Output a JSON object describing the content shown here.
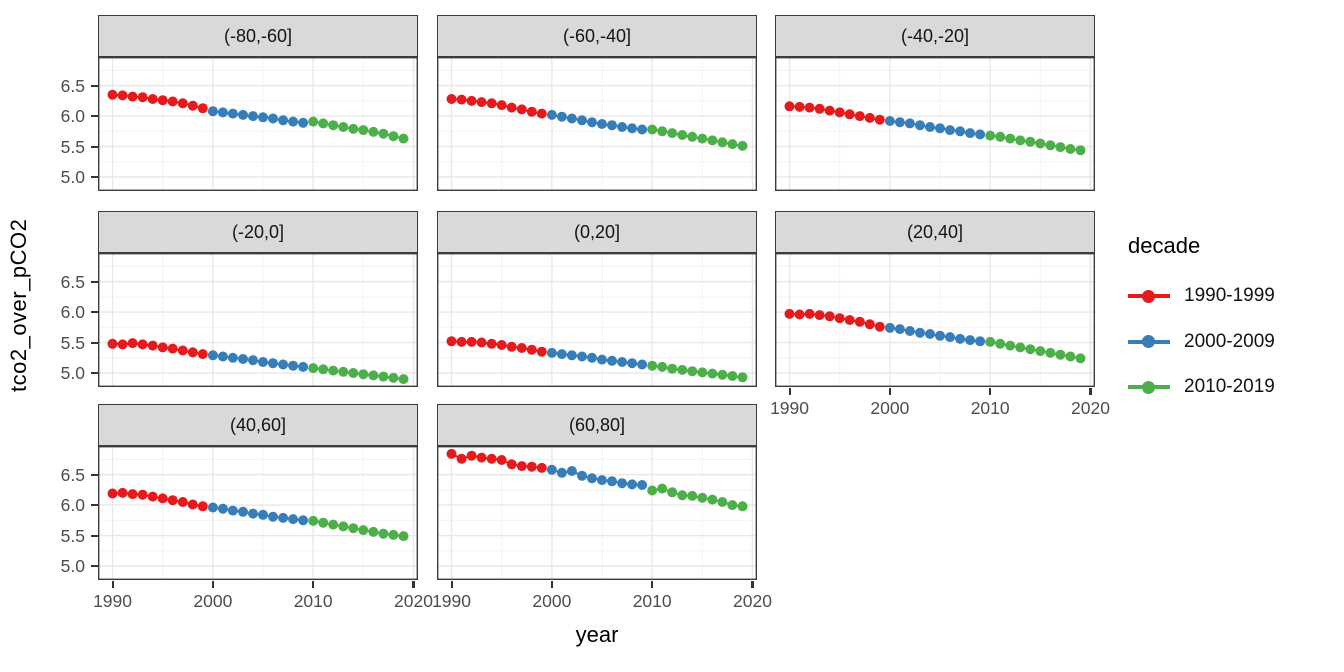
{
  "chart_data": {
    "type": "scatter",
    "title": "",
    "xlabel": "year",
    "ylabel": "tco2_over_pCO2",
    "grid": true,
    "xlim": [
      1988.55,
      2020.45
    ],
    "ylim": [
      4.77,
      6.97
    ],
    "x_ticks": [
      1990,
      2000,
      2010,
      2020
    ],
    "y_ticks": [
      5.0,
      5.5,
      6.0,
      6.5
    ],
    "x_minor": [
      1995,
      2005,
      2015
    ],
    "y_minor": [
      5.25,
      5.75,
      6.25,
      6.75
    ],
    "years": [
      1990,
      1991,
      1992,
      1993,
      1994,
      1995,
      1996,
      1997,
      1998,
      1999,
      2000,
      2001,
      2002,
      2003,
      2004,
      2005,
      2006,
      2007,
      2008,
      2009,
      2010,
      2011,
      2012,
      2013,
      2014,
      2015,
      2016,
      2017,
      2018,
      2019
    ],
    "legend": {
      "title": "decade",
      "position": "right",
      "entries": [
        {
          "label": "1990-1999",
          "color": "#E41A1C"
        },
        {
          "label": "2000-2009",
          "color": "#377EB8"
        },
        {
          "label": "2010-2019",
          "color": "#4DAF4A"
        }
      ]
    },
    "facets": [
      {
        "label": "(-80,-60]",
        "values": [
          6.35,
          6.34,
          6.32,
          6.31,
          6.28,
          6.26,
          6.24,
          6.21,
          6.17,
          6.13,
          6.08,
          6.06,
          6.04,
          6.02,
          6.0,
          5.98,
          5.96,
          5.93,
          5.91,
          5.89,
          5.91,
          5.88,
          5.85,
          5.82,
          5.79,
          5.77,
          5.74,
          5.71,
          5.67,
          5.63
        ]
      },
      {
        "label": "(-60,-40]",
        "values": [
          6.28,
          6.27,
          6.25,
          6.23,
          6.21,
          6.18,
          6.14,
          6.11,
          6.07,
          6.04,
          6.02,
          5.99,
          5.96,
          5.93,
          5.9,
          5.87,
          5.85,
          5.82,
          5.8,
          5.78,
          5.78,
          5.75,
          5.72,
          5.69,
          5.66,
          5.63,
          5.6,
          5.57,
          5.54,
          5.51
        ]
      },
      {
        "label": "(-40,-20]",
        "values": [
          6.16,
          6.15,
          6.14,
          6.12,
          6.09,
          6.06,
          6.03,
          6.0,
          5.97,
          5.94,
          5.92,
          5.9,
          5.88,
          5.85,
          5.82,
          5.8,
          5.77,
          5.75,
          5.72,
          5.7,
          5.68,
          5.66,
          5.63,
          5.6,
          5.58,
          5.55,
          5.52,
          5.49,
          5.46,
          5.44
        ]
      },
      {
        "label": "(-20,0]",
        "values": [
          5.48,
          5.47,
          5.49,
          5.47,
          5.45,
          5.42,
          5.4,
          5.37,
          5.34,
          5.31,
          5.29,
          5.27,
          5.25,
          5.23,
          5.21,
          5.18,
          5.16,
          5.14,
          5.12,
          5.1,
          5.08,
          5.06,
          5.04,
          5.02,
          5.0,
          4.98,
          4.96,
          4.94,
          4.92,
          4.9
        ]
      },
      {
        "label": "(0,20]",
        "values": [
          5.52,
          5.51,
          5.51,
          5.5,
          5.48,
          5.46,
          5.43,
          5.41,
          5.38,
          5.35,
          5.33,
          5.31,
          5.29,
          5.27,
          5.25,
          5.22,
          5.2,
          5.18,
          5.16,
          5.14,
          5.12,
          5.1,
          5.07,
          5.05,
          5.03,
          5.01,
          4.99,
          4.97,
          4.95,
          4.93
        ]
      },
      {
        "label": "(20,40]",
        "values": [
          5.97,
          5.96,
          5.97,
          5.95,
          5.93,
          5.9,
          5.87,
          5.84,
          5.8,
          5.76,
          5.74,
          5.72,
          5.69,
          5.66,
          5.64,
          5.61,
          5.59,
          5.56,
          5.54,
          5.52,
          5.51,
          5.48,
          5.45,
          5.42,
          5.39,
          5.36,
          5.33,
          5.3,
          5.27,
          5.24
        ]
      },
      {
        "label": "(40,60]",
        "values": [
          6.19,
          6.2,
          6.18,
          6.17,
          6.14,
          6.11,
          6.08,
          6.05,
          6.01,
          5.98,
          5.96,
          5.94,
          5.91,
          5.89,
          5.86,
          5.84,
          5.81,
          5.79,
          5.77,
          5.75,
          5.74,
          5.71,
          5.68,
          5.65,
          5.62,
          5.59,
          5.56,
          5.53,
          5.51,
          5.49
        ]
      },
      {
        "label": "(60,80]",
        "values": [
          6.84,
          6.76,
          6.81,
          6.78,
          6.76,
          6.74,
          6.67,
          6.64,
          6.63,
          6.61,
          6.58,
          6.53,
          6.56,
          6.48,
          6.44,
          6.41,
          6.39,
          6.36,
          6.34,
          6.33,
          6.24,
          6.27,
          6.21,
          6.16,
          6.15,
          6.12,
          6.09,
          6.05,
          6.0,
          5.98
        ]
      }
    ],
    "theme": {
      "strip_bg": "#D9D9D9",
      "panel_border": "#3C3C3C",
      "grid_major": "#E8E8E8",
      "grid_minor": "#F3F3F3",
      "tick_text": "#4D4D4D",
      "background": "#FFFFFF"
    }
  }
}
